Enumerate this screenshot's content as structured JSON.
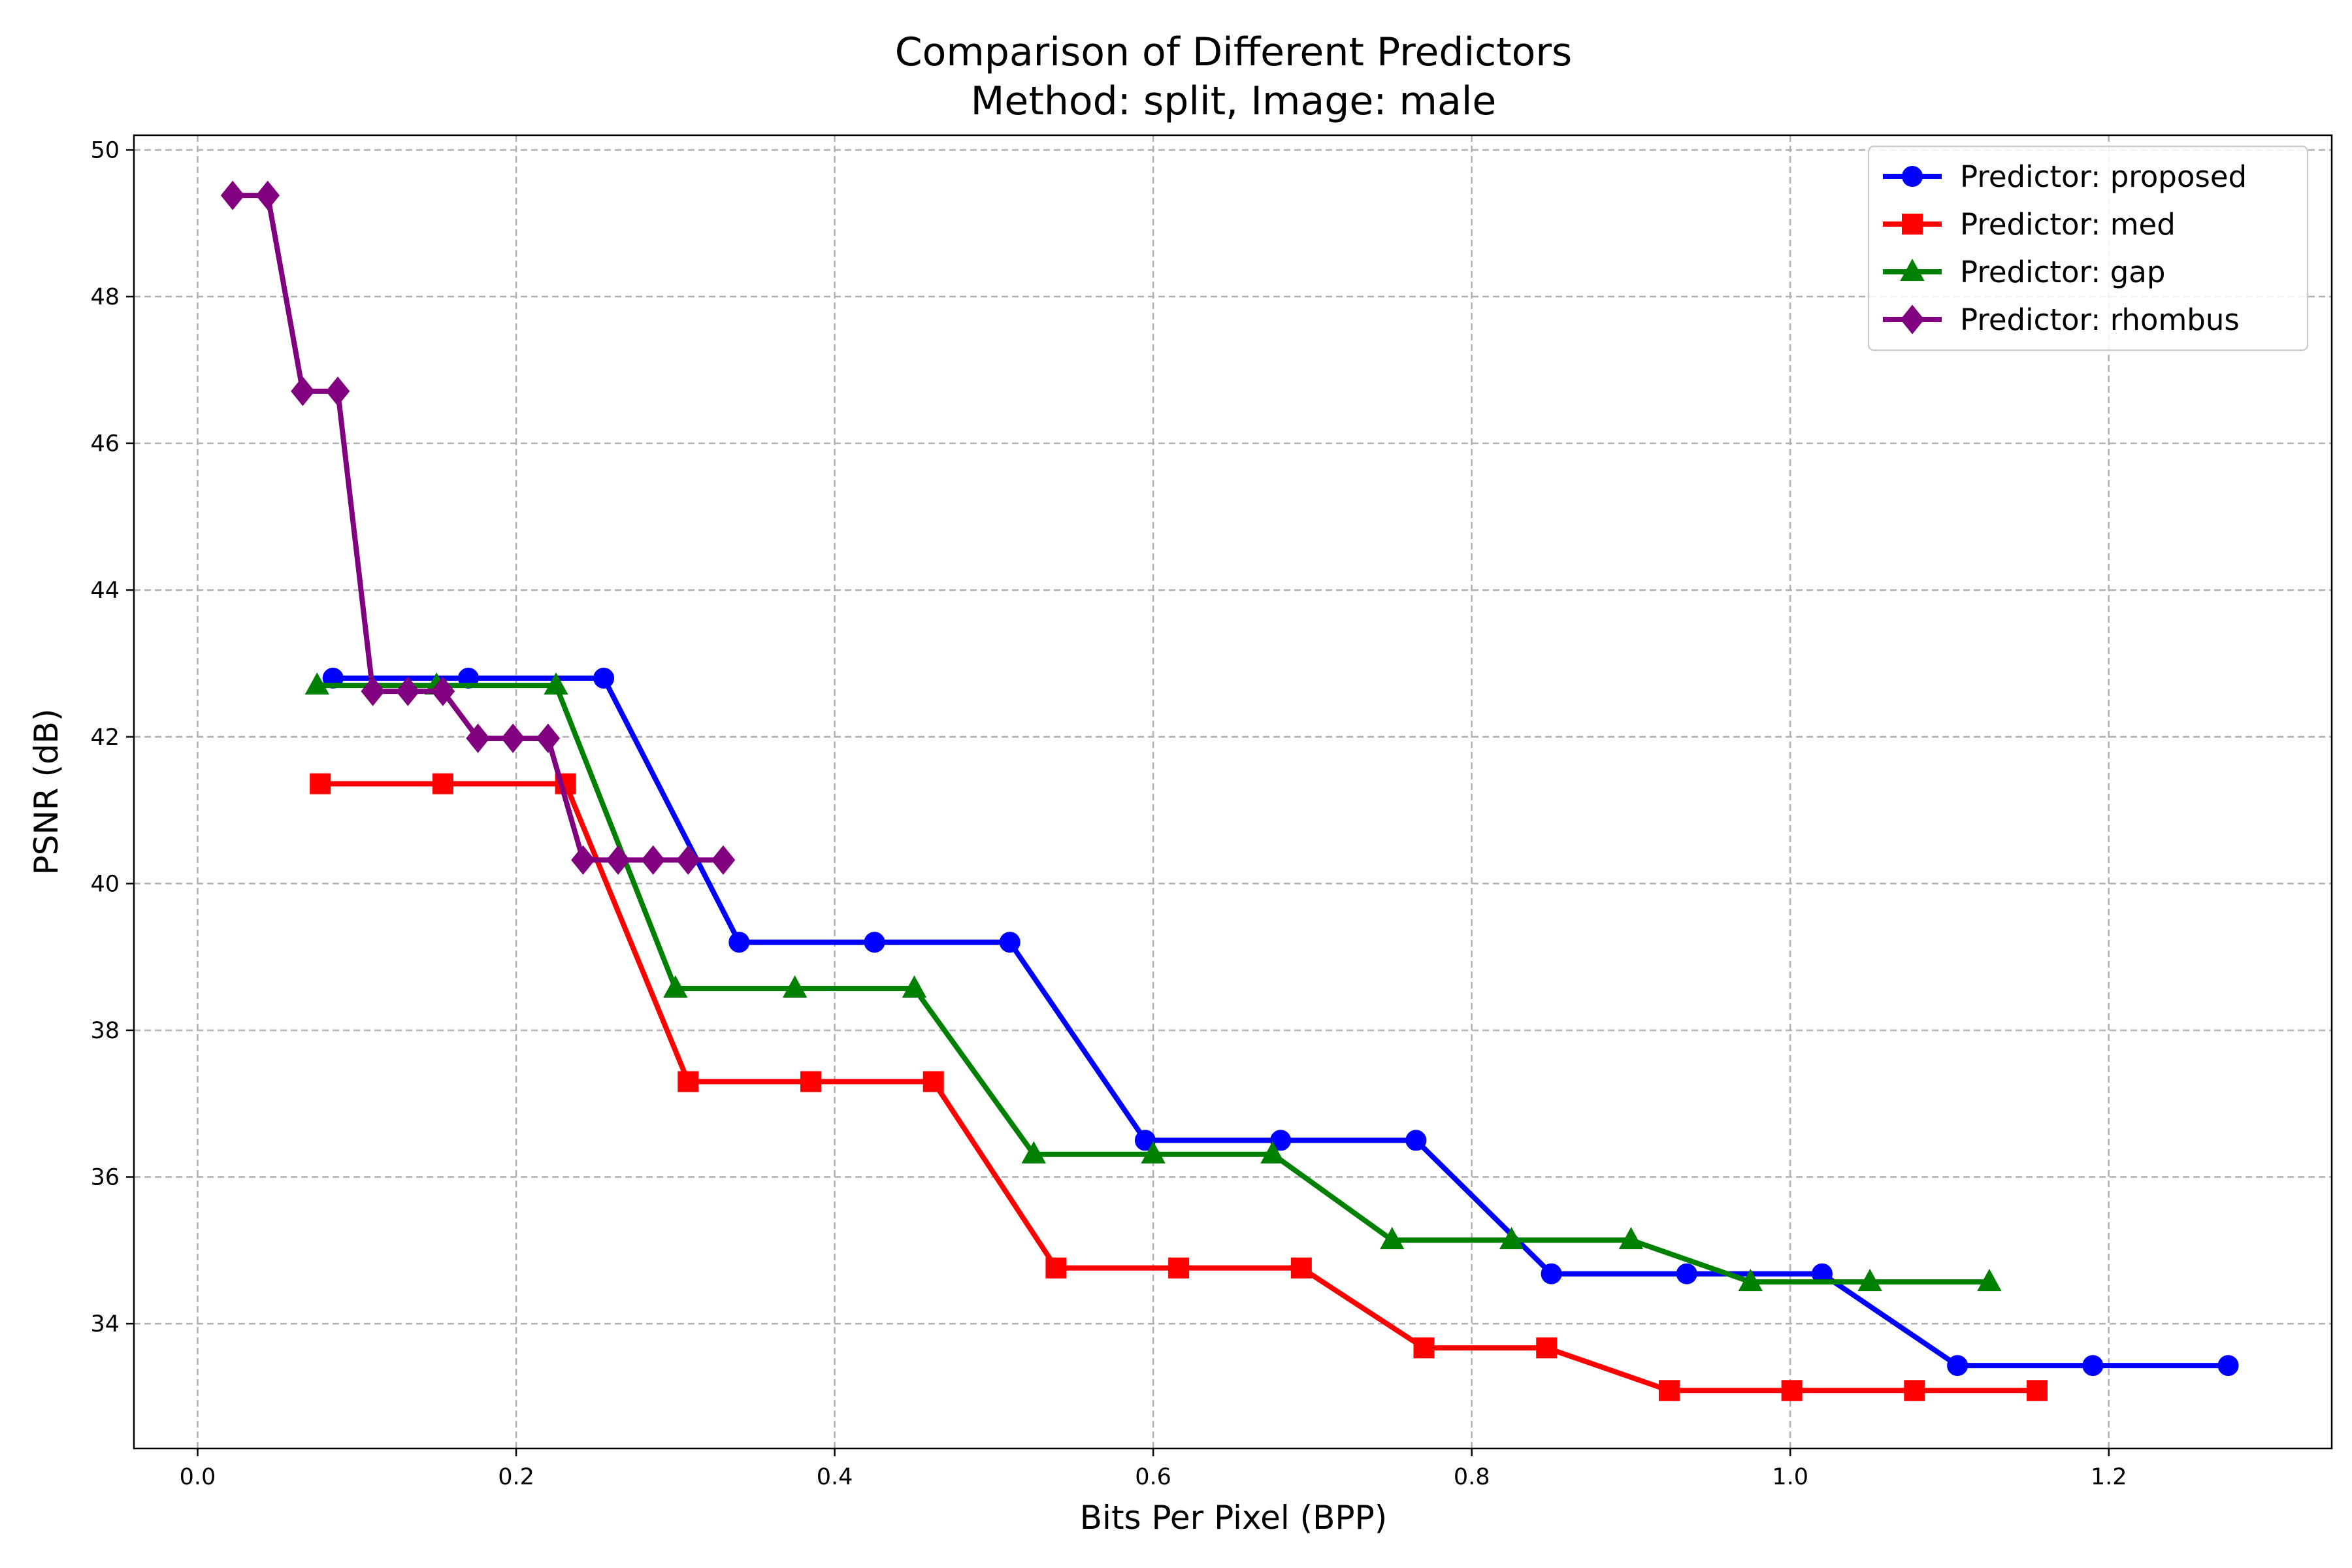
{
  "chart_data": {
    "type": "line",
    "title": "Comparison of Different Predictors",
    "subtitle": "Method: split, Image: male",
    "xlabel": "Bits Per Pixel (BPP)",
    "ylabel": "PSNR (dB)",
    "xlim": [
      -0.04,
      1.34
    ],
    "ylim": [
      32.3,
      50.2
    ],
    "xticks": [
      0.0,
      0.2,
      0.4,
      0.6,
      0.8,
      1.0,
      1.2
    ],
    "xtick_labels": [
      "0.0",
      "0.2",
      "0.4",
      "0.6",
      "0.8",
      "1.0",
      "1.2"
    ],
    "yticks": [
      34,
      36,
      38,
      40,
      42,
      44,
      46,
      48,
      50
    ],
    "ytick_labels": [
      "34",
      "36",
      "38",
      "40",
      "42",
      "44",
      "46",
      "48",
      "50"
    ],
    "grid": true,
    "legend_position": "top-right",
    "series": [
      {
        "name": "Predictor: proposed",
        "color": "#0000ff",
        "marker": "circle",
        "x": [
          0.085,
          0.17,
          0.255,
          0.34,
          0.425,
          0.51,
          0.595,
          0.68,
          0.765,
          0.85,
          0.935,
          1.02,
          1.105,
          1.19,
          1.275
        ],
        "y": [
          42.8,
          42.8,
          42.8,
          39.2,
          39.2,
          39.2,
          36.5,
          36.5,
          36.5,
          34.68,
          34.68,
          34.68,
          33.43,
          33.43,
          33.43
        ]
      },
      {
        "name": "Predictor: med",
        "color": "#ff0000",
        "marker": "square",
        "x": [
          0.077,
          0.154,
          0.231,
          0.308,
          0.385,
          0.462,
          0.539,
          0.616,
          0.693,
          0.77,
          0.847,
          0.924,
          1.001,
          1.078,
          1.155
        ],
        "y": [
          41.36,
          41.36,
          41.36,
          37.3,
          37.3,
          37.3,
          34.76,
          34.76,
          34.76,
          33.67,
          33.67,
          33.09,
          33.09,
          33.09,
          33.09
        ]
      },
      {
        "name": "Predictor: gap",
        "color": "#008000",
        "marker": "triangle",
        "x": [
          0.075,
          0.15,
          0.225,
          0.3,
          0.375,
          0.45,
          0.525,
          0.6,
          0.675,
          0.75,
          0.825,
          0.9,
          0.975,
          1.05,
          1.125
        ],
        "y": [
          42.7,
          42.7,
          42.7,
          38.57,
          38.57,
          38.57,
          36.31,
          36.31,
          36.31,
          35.14,
          35.14,
          35.14,
          34.57,
          34.57,
          34.57
        ]
      },
      {
        "name": "Predictor: rhombus",
        "color": "#800080",
        "marker": "diamond",
        "x": [
          0.022,
          0.044,
          0.066,
          0.088,
          0.11,
          0.132,
          0.154,
          0.176,
          0.198,
          0.22,
          0.242,
          0.264,
          0.286,
          0.308,
          0.33
        ],
        "y": [
          49.38,
          49.38,
          46.71,
          46.71,
          42.62,
          42.62,
          42.62,
          41.98,
          41.98,
          41.98,
          40.32,
          40.32,
          40.32,
          40.32,
          40.32
        ]
      }
    ]
  }
}
